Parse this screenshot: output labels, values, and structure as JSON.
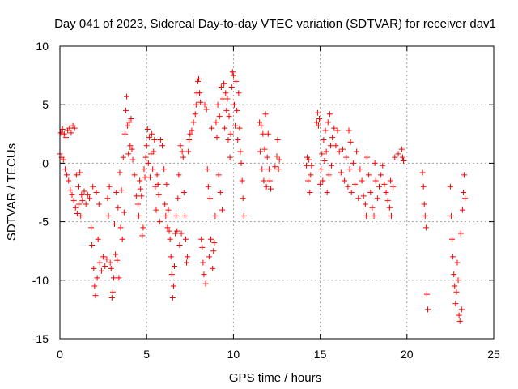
{
  "chart_data": {
    "type": "scatter",
    "title": "Day 041 of 2023, Sidereal Day-to-day VTEC variation (SDTVAR) for receiver dav1",
    "xlabel": "GPS time / hours",
    "ylabel": "SDTVAR / TECUs",
    "xlim": [
      0,
      25
    ],
    "ylim": [
      -15,
      10
    ],
    "x_ticks": [
      "0",
      "5",
      "10",
      "15",
      "20",
      "25"
    ],
    "y_ticks": [
      "-15",
      "-10",
      "-5",
      "0",
      "5",
      "10"
    ],
    "grid": true,
    "marker": "plus",
    "series": [
      {
        "name": "SDTVAR",
        "color": "#ff0000",
        "points": [
          [
            0.0,
            0.8
          ],
          [
            0.05,
            2.6
          ],
          [
            0.1,
            0.5
          ],
          [
            0.15,
            2.9
          ],
          [
            0.2,
            0.3
          ],
          [
            0.25,
            2.5
          ],
          [
            0.3,
            -0.5
          ],
          [
            0.35,
            2.2
          ],
          [
            0.4,
            -1.0
          ],
          [
            0.45,
            2.8
          ],
          [
            0.5,
            -1.5
          ],
          [
            0.55,
            3.0
          ],
          [
            0.6,
            -2.3
          ],
          [
            0.65,
            2.6
          ],
          [
            0.7,
            -2.7
          ],
          [
            0.75,
            3.2
          ],
          [
            0.8,
            -3.2
          ],
          [
            0.85,
            3.0
          ],
          [
            0.9,
            -3.8
          ],
          [
            0.95,
            -1.0
          ],
          [
            1.0,
            -4.3
          ],
          [
            1.05,
            -2.0
          ],
          [
            1.1,
            -3.5
          ],
          [
            1.15,
            -0.8
          ],
          [
            1.2,
            -4.5
          ],
          [
            1.25,
            -2.7
          ],
          [
            1.3,
            -3.2
          ],
          [
            1.4,
            -2.4
          ],
          [
            1.5,
            -3.5
          ],
          [
            1.6,
            -2.7
          ],
          [
            1.7,
            -3.0
          ],
          [
            1.8,
            -5.5
          ],
          [
            1.85,
            -7.0
          ],
          [
            1.9,
            -2.0
          ],
          [
            1.95,
            -9.0
          ],
          [
            2.0,
            -10.5
          ],
          [
            2.05,
            -11.3
          ],
          [
            2.1,
            -2.5
          ],
          [
            2.15,
            -9.8
          ],
          [
            2.2,
            -6.5
          ],
          [
            2.25,
            -3.5
          ],
          [
            2.3,
            -8.5
          ],
          [
            2.4,
            -9.2
          ],
          [
            2.5,
            -8.0
          ],
          [
            2.6,
            -8.8
          ],
          [
            2.7,
            -8.2
          ],
          [
            2.75,
            -3.0
          ],
          [
            2.8,
            -4.5
          ],
          [
            2.85,
            -2.0
          ],
          [
            2.9,
            -8.5
          ],
          [
            2.95,
            -9.0
          ],
          [
            3.0,
            -11.5
          ],
          [
            3.05,
            -11.0
          ],
          [
            3.1,
            -9.8
          ],
          [
            3.15,
            -5.2
          ],
          [
            3.2,
            -7.8
          ],
          [
            3.25,
            -2.5
          ],
          [
            3.3,
            -8.3
          ],
          [
            3.35,
            -3.8
          ],
          [
            3.4,
            -9.8
          ],
          [
            3.45,
            -0.8
          ],
          [
            3.5,
            -5.5
          ],
          [
            3.55,
            -2.3
          ],
          [
            3.6,
            -6.5
          ],
          [
            3.65,
            0.5
          ],
          [
            3.7,
            -4.2
          ],
          [
            3.75,
            2.5
          ],
          [
            3.8,
            4.5
          ],
          [
            3.85,
            5.7
          ],
          [
            3.9,
            3.2
          ],
          [
            3.95,
            0.8
          ],
          [
            4.0,
            3.5
          ],
          [
            4.05,
            1.5
          ],
          [
            4.1,
            3.8
          ],
          [
            4.15,
            1.2
          ],
          [
            4.2,
            0.3
          ],
          [
            4.3,
            -1.0
          ],
          [
            4.4,
            -2.8
          ],
          [
            4.5,
            -3.5
          ],
          [
            4.55,
            -4.5
          ],
          [
            4.6,
            -1.5
          ],
          [
            4.65,
            -2.2
          ],
          [
            4.7,
            -2.8
          ],
          [
            4.75,
            -6.2
          ],
          [
            4.8,
            -5.5
          ],
          [
            4.85,
            -0.5
          ],
          [
            4.9,
            -1.2
          ],
          [
            4.95,
            0.5
          ],
          [
            5.0,
            1.5
          ],
          [
            5.05,
            2.9
          ],
          [
            5.1,
            0.0
          ],
          [
            5.15,
            2.2
          ],
          [
            5.2,
            -1.2
          ],
          [
            5.25,
            0.8
          ],
          [
            5.3,
            2.5
          ],
          [
            5.35,
            -0.5
          ],
          [
            5.4,
            1.0
          ],
          [
            5.45,
            2.0
          ],
          [
            5.5,
            -2.0
          ],
          [
            5.55,
            -4.0
          ],
          [
            5.6,
            -1.0
          ],
          [
            5.65,
            -1.8
          ],
          [
            5.7,
            -2.7
          ],
          [
            5.75,
            -5.0
          ],
          [
            5.8,
            2.0
          ],
          [
            5.9,
            1.5
          ],
          [
            6.0,
            -0.5
          ],
          [
            6.05,
            -3.5
          ],
          [
            6.1,
            -4.5
          ],
          [
            6.15,
            -1.8
          ],
          [
            6.2,
            -5.5
          ],
          [
            6.25,
            -4.0
          ],
          [
            6.3,
            -5.8
          ],
          [
            6.35,
            -6.5
          ],
          [
            6.4,
            -8.0
          ],
          [
            6.45,
            -9.5
          ],
          [
            6.5,
            -11.5
          ],
          [
            6.55,
            -10.5
          ],
          [
            6.6,
            -8.8
          ],
          [
            6.65,
            -6.0
          ],
          [
            6.7,
            -4.5
          ],
          [
            6.75,
            -5.8
          ],
          [
            6.8,
            -3.0
          ],
          [
            6.85,
            -1.0
          ],
          [
            6.9,
            -7.0
          ],
          [
            6.95,
            1.5
          ],
          [
            7.0,
            -6.0
          ],
          [
            7.05,
            1.0
          ],
          [
            7.1,
            0.5
          ],
          [
            7.15,
            -2.5
          ],
          [
            7.2,
            -4.5
          ],
          [
            7.25,
            -6.5
          ],
          [
            7.3,
            -8.5
          ],
          [
            7.35,
            -8.0
          ],
          [
            7.4,
            1.0
          ],
          [
            7.45,
            2.0
          ],
          [
            7.5,
            2.5
          ],
          [
            7.6,
            2.8
          ],
          [
            7.7,
            3.5
          ],
          [
            7.8,
            4.2
          ],
          [
            7.85,
            5.0
          ],
          [
            7.9,
            6.0
          ],
          [
            7.95,
            7.0
          ],
          [
            8.0,
            7.2
          ],
          [
            8.05,
            6.0
          ],
          [
            8.1,
            5.2
          ],
          [
            8.15,
            -6.5
          ],
          [
            8.2,
            -7.2
          ],
          [
            8.25,
            -8.5
          ],
          [
            8.3,
            -9.5
          ],
          [
            8.35,
            5.0
          ],
          [
            8.4,
            -10.3
          ],
          [
            8.45,
            4.6
          ],
          [
            8.5,
            -0.5
          ],
          [
            8.55,
            -2.0
          ],
          [
            8.6,
            -8.0
          ],
          [
            8.65,
            -3.0
          ],
          [
            8.7,
            -6.5
          ],
          [
            8.75,
            3.0
          ],
          [
            8.8,
            -9.0
          ],
          [
            8.85,
            -7.5
          ],
          [
            8.9,
            -6.8
          ],
          [
            8.95,
            -4.5
          ],
          [
            9.0,
            3.5
          ],
          [
            9.05,
            2.2
          ],
          [
            9.1,
            5.0
          ],
          [
            9.15,
            -1.0
          ],
          [
            9.2,
            4.0
          ],
          [
            9.25,
            -2.5
          ],
          [
            9.3,
            6.5
          ],
          [
            9.35,
            -4.0
          ],
          [
            9.4,
            5.5
          ],
          [
            9.45,
            6.8
          ],
          [
            9.5,
            3.0
          ],
          [
            9.55,
            6.0
          ],
          [
            9.6,
            4.5
          ],
          [
            9.65,
            5.5
          ],
          [
            9.7,
            2.0
          ],
          [
            9.75,
            4.0
          ],
          [
            9.8,
            0.5
          ],
          [
            9.85,
            2.5
          ],
          [
            9.9,
            6.5
          ],
          [
            9.95,
            7.8
          ],
          [
            10.0,
            7.5
          ],
          [
            10.05,
            5.0
          ],
          [
            10.1,
            3.2
          ],
          [
            10.15,
            7.0
          ],
          [
            10.2,
            4.5
          ],
          [
            10.25,
            2.0
          ],
          [
            10.3,
            6.0
          ],
          [
            10.35,
            3.0
          ],
          [
            10.4,
            1.0
          ],
          [
            10.45,
            0.0
          ],
          [
            10.5,
            -1.5
          ],
          [
            10.55,
            -3.0
          ],
          [
            10.6,
            -4.5
          ],
          [
            11.5,
            3.5
          ],
          [
            11.55,
            1.0
          ],
          [
            11.6,
            3.2
          ],
          [
            11.65,
            -0.5
          ],
          [
            11.7,
            2.5
          ],
          [
            11.75,
            -1.5
          ],
          [
            11.8,
            1.2
          ],
          [
            11.85,
            4.2
          ],
          [
            11.9,
            -2.0
          ],
          [
            11.95,
            0.5
          ],
          [
            12.0,
            2.5
          ],
          [
            12.05,
            -0.5
          ],
          [
            12.1,
            -1.5
          ],
          [
            12.15,
            -2.2
          ],
          [
            12.4,
            -0.3
          ],
          [
            12.5,
            0.6
          ],
          [
            12.55,
            2.0
          ],
          [
            12.6,
            -0.5
          ],
          [
            12.65,
            0.3
          ],
          [
            14.2,
            -0.2
          ],
          [
            14.25,
            0.5
          ],
          [
            14.3,
            -1.5
          ],
          [
            14.35,
            0.3
          ],
          [
            14.4,
            -2.5
          ],
          [
            14.45,
            -1.0
          ],
          [
            14.5,
            -0.2
          ],
          [
            14.8,
            3.5
          ],
          [
            14.85,
            4.3
          ],
          [
            14.9,
            3.2
          ],
          [
            14.95,
            3.8
          ],
          [
            15.0,
            -1.8
          ],
          [
            15.05,
            -0.5
          ],
          [
            15.1,
            0.8
          ],
          [
            15.15,
            -1.5
          ],
          [
            15.2,
            2.0
          ],
          [
            15.25,
            0.2
          ],
          [
            15.3,
            2.8
          ],
          [
            15.35,
            1.0
          ],
          [
            15.4,
            -2.5
          ],
          [
            15.45,
            3.5
          ],
          [
            15.5,
            -1.0
          ],
          [
            15.55,
            4.2
          ],
          [
            15.6,
            1.5
          ],
          [
            15.65,
            -0.2
          ],
          [
            15.7,
            2.2
          ],
          [
            15.8,
            3.0
          ],
          [
            15.9,
            1.5
          ],
          [
            16.0,
            2.8
          ],
          [
            16.1,
            1.0
          ],
          [
            16.2,
            -0.8
          ],
          [
            16.3,
            1.2
          ],
          [
            16.4,
            -1.5
          ],
          [
            16.5,
            0.5
          ],
          [
            16.6,
            -2.0
          ],
          [
            16.65,
            2.8
          ],
          [
            16.7,
            -0.5
          ],
          [
            16.75,
            1.8
          ],
          [
            16.8,
            -2.5
          ],
          [
            16.9,
            0.0
          ],
          [
            17.0,
            -1.8
          ],
          [
            17.1,
            1.0
          ],
          [
            17.2,
            -3.0
          ],
          [
            17.3,
            -0.5
          ],
          [
            17.4,
            -1.5
          ],
          [
            17.5,
            -2.8
          ],
          [
            17.6,
            -3.5
          ],
          [
            17.65,
            -4.5
          ],
          [
            17.7,
            0.5
          ],
          [
            17.8,
            -1.0
          ],
          [
            17.9,
            -2.5
          ],
          [
            18.0,
            -3.8
          ],
          [
            18.1,
            -4.5
          ],
          [
            18.15,
            0.0
          ],
          [
            18.2,
            -1.5
          ],
          [
            18.3,
            -3.0
          ],
          [
            18.4,
            -2.0
          ],
          [
            18.5,
            -1.0
          ],
          [
            18.6,
            -0.2
          ],
          [
            18.7,
            -1.8
          ],
          [
            18.8,
            -2.5
          ],
          [
            18.9,
            -3.2
          ],
          [
            19.0,
            -3.8
          ],
          [
            19.05,
            -1.5
          ],
          [
            19.1,
            -4.5
          ],
          [
            19.2,
            -2.0
          ],
          [
            19.3,
            0.5
          ],
          [
            19.5,
            0.8
          ],
          [
            19.7,
            1.2
          ],
          [
            19.75,
            0.5
          ],
          [
            19.8,
            0.2
          ],
          [
            20.9,
            -0.8
          ],
          [
            20.95,
            -2.0
          ],
          [
            21.0,
            -3.5
          ],
          [
            21.05,
            -4.5
          ],
          [
            21.1,
            -5.5
          ],
          [
            21.15,
            -11.2
          ],
          [
            21.2,
            -12.5
          ],
          [
            22.5,
            -2.0
          ],
          [
            22.55,
            -4.5
          ],
          [
            22.6,
            -6.5
          ],
          [
            22.65,
            -8.0
          ],
          [
            22.7,
            -9.5
          ],
          [
            22.75,
            -10.5
          ],
          [
            22.8,
            -12.0
          ],
          [
            22.85,
            -11.0
          ],
          [
            22.9,
            -8.5
          ],
          [
            22.95,
            -10.0
          ],
          [
            23.0,
            -13.0
          ],
          [
            23.05,
            -13.5
          ],
          [
            23.1,
            -6.0
          ],
          [
            23.15,
            -12.5
          ],
          [
            23.2,
            -4.0
          ],
          [
            23.25,
            -2.5
          ],
          [
            23.3,
            -1.0
          ],
          [
            23.35,
            -3.0
          ]
        ]
      }
    ]
  }
}
